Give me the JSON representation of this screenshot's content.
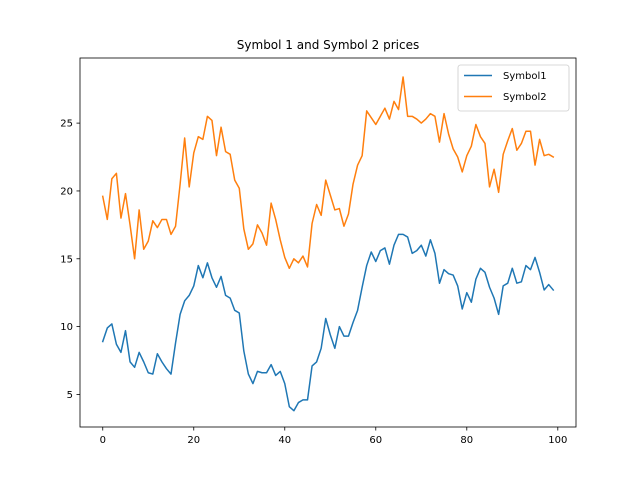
{
  "chart_data": {
    "type": "line",
    "title": "Symbol 1 and Symbol 2 prices",
    "xlabel": "",
    "ylabel": "",
    "xlim": [
      -5,
      104
    ],
    "ylim": [
      2.6,
      29.8
    ],
    "xticks": [
      0,
      20,
      40,
      60,
      80,
      100
    ],
    "yticks": [
      5,
      10,
      15,
      20,
      25
    ],
    "grid": false,
    "legend_position": "top-right",
    "series": [
      {
        "name": "Symbol1",
        "color": "#1f77b4",
        "x": [
          0,
          1,
          2,
          3,
          4,
          5,
          6,
          7,
          8,
          9,
          10,
          11,
          12,
          13,
          14,
          15,
          16,
          17,
          18,
          19,
          20,
          21,
          22,
          23,
          24,
          25,
          26,
          27,
          28,
          29,
          30,
          31,
          32,
          33,
          34,
          35,
          36,
          37,
          38,
          39,
          40,
          41,
          42,
          43,
          44,
          45,
          46,
          47,
          48,
          49,
          50,
          51,
          52,
          53,
          54,
          55,
          56,
          57,
          58,
          59,
          60,
          61,
          62,
          63,
          64,
          65,
          66,
          67,
          68,
          69,
          70,
          71,
          72,
          73,
          74,
          75,
          76,
          77,
          78,
          79,
          80,
          81,
          82,
          83,
          84,
          85,
          86,
          87,
          88,
          89,
          90,
          91,
          92,
          93,
          94,
          95,
          96,
          97,
          98,
          99
        ],
        "values": [
          8.9,
          9.9,
          10.2,
          8.7,
          8.1,
          9.7,
          7.4,
          7.0,
          8.1,
          7.4,
          6.6,
          6.5,
          8.0,
          7.4,
          6.9,
          6.5,
          8.8,
          10.9,
          11.9,
          12.3,
          13.0,
          14.5,
          13.6,
          14.7,
          13.6,
          12.9,
          13.7,
          12.3,
          12.1,
          11.2,
          11.0,
          8.2,
          6.5,
          5.8,
          6.7,
          6.6,
          6.6,
          7.2,
          6.4,
          6.7,
          5.8,
          4.1,
          3.8,
          4.4,
          4.6,
          4.6,
          7.1,
          7.4,
          8.4,
          10.6,
          9.4,
          8.4,
          10.0,
          9.3,
          9.3,
          10.3,
          11.2,
          12.9,
          14.5,
          15.5,
          14.8,
          15.6,
          15.8,
          14.6,
          16.0,
          16.8,
          16.8,
          16.6,
          15.4,
          15.6,
          16.0,
          15.2,
          16.4,
          15.4,
          13.2,
          14.2,
          13.9,
          13.8,
          13.0,
          11.3,
          12.5,
          11.8,
          13.5,
          14.3,
          14.0,
          12.9,
          12.1,
          10.9,
          13.0,
          13.2,
          14.3,
          13.2,
          13.3,
          14.5,
          14.2,
          15.1,
          14.0,
          12.7,
          13.1,
          12.7
        ]
      },
      {
        "name": "Symbol2",
        "color": "#ff7f0e",
        "x": [
          0,
          1,
          2,
          3,
          4,
          5,
          6,
          7,
          8,
          9,
          10,
          11,
          12,
          13,
          14,
          15,
          16,
          17,
          18,
          19,
          20,
          21,
          22,
          23,
          24,
          25,
          26,
          27,
          28,
          29,
          30,
          31,
          32,
          33,
          34,
          35,
          36,
          37,
          38,
          39,
          40,
          41,
          42,
          43,
          44,
          45,
          46,
          47,
          48,
          49,
          50,
          51,
          52,
          53,
          54,
          55,
          56,
          57,
          58,
          59,
          60,
          61,
          62,
          63,
          64,
          65,
          66,
          67,
          68,
          69,
          70,
          71,
          72,
          73,
          74,
          75,
          76,
          77,
          78,
          79,
          80,
          81,
          82,
          83,
          84,
          85,
          86,
          87,
          88,
          89,
          90,
          91,
          92,
          93,
          94,
          95,
          96,
          97,
          98,
          99
        ],
        "values": [
          19.6,
          17.9,
          20.9,
          21.3,
          18.0,
          19.8,
          17.5,
          15.0,
          18.6,
          15.7,
          16.3,
          17.8,
          17.3,
          17.9,
          17.9,
          16.8,
          17.4,
          20.5,
          23.9,
          20.3,
          22.8,
          24.0,
          23.8,
          25.5,
          25.2,
          22.6,
          24.7,
          22.9,
          22.7,
          20.8,
          20.2,
          17.2,
          15.7,
          16.1,
          17.5,
          16.9,
          16.0,
          19.1,
          17.9,
          16.4,
          15.1,
          14.3,
          15.0,
          14.7,
          15.2,
          14.4,
          17.6,
          19.0,
          18.2,
          20.8,
          19.7,
          18.6,
          18.7,
          17.4,
          18.3,
          20.5,
          21.9,
          22.6,
          25.9,
          25.4,
          24.9,
          25.5,
          26.1,
          25.3,
          26.6,
          26.0,
          28.4,
          25.5,
          25.5,
          25.3,
          25.0,
          25.3,
          25.7,
          25.5,
          23.6,
          25.7,
          24.2,
          23.1,
          22.5,
          21.4,
          22.6,
          23.3,
          24.9,
          24.0,
          23.5,
          20.3,
          21.6,
          19.9,
          22.7,
          23.7,
          24.6,
          23.0,
          23.5,
          24.4,
          24.4,
          21.9,
          23.8,
          22.6,
          22.7,
          22.5
        ]
      }
    ]
  }
}
